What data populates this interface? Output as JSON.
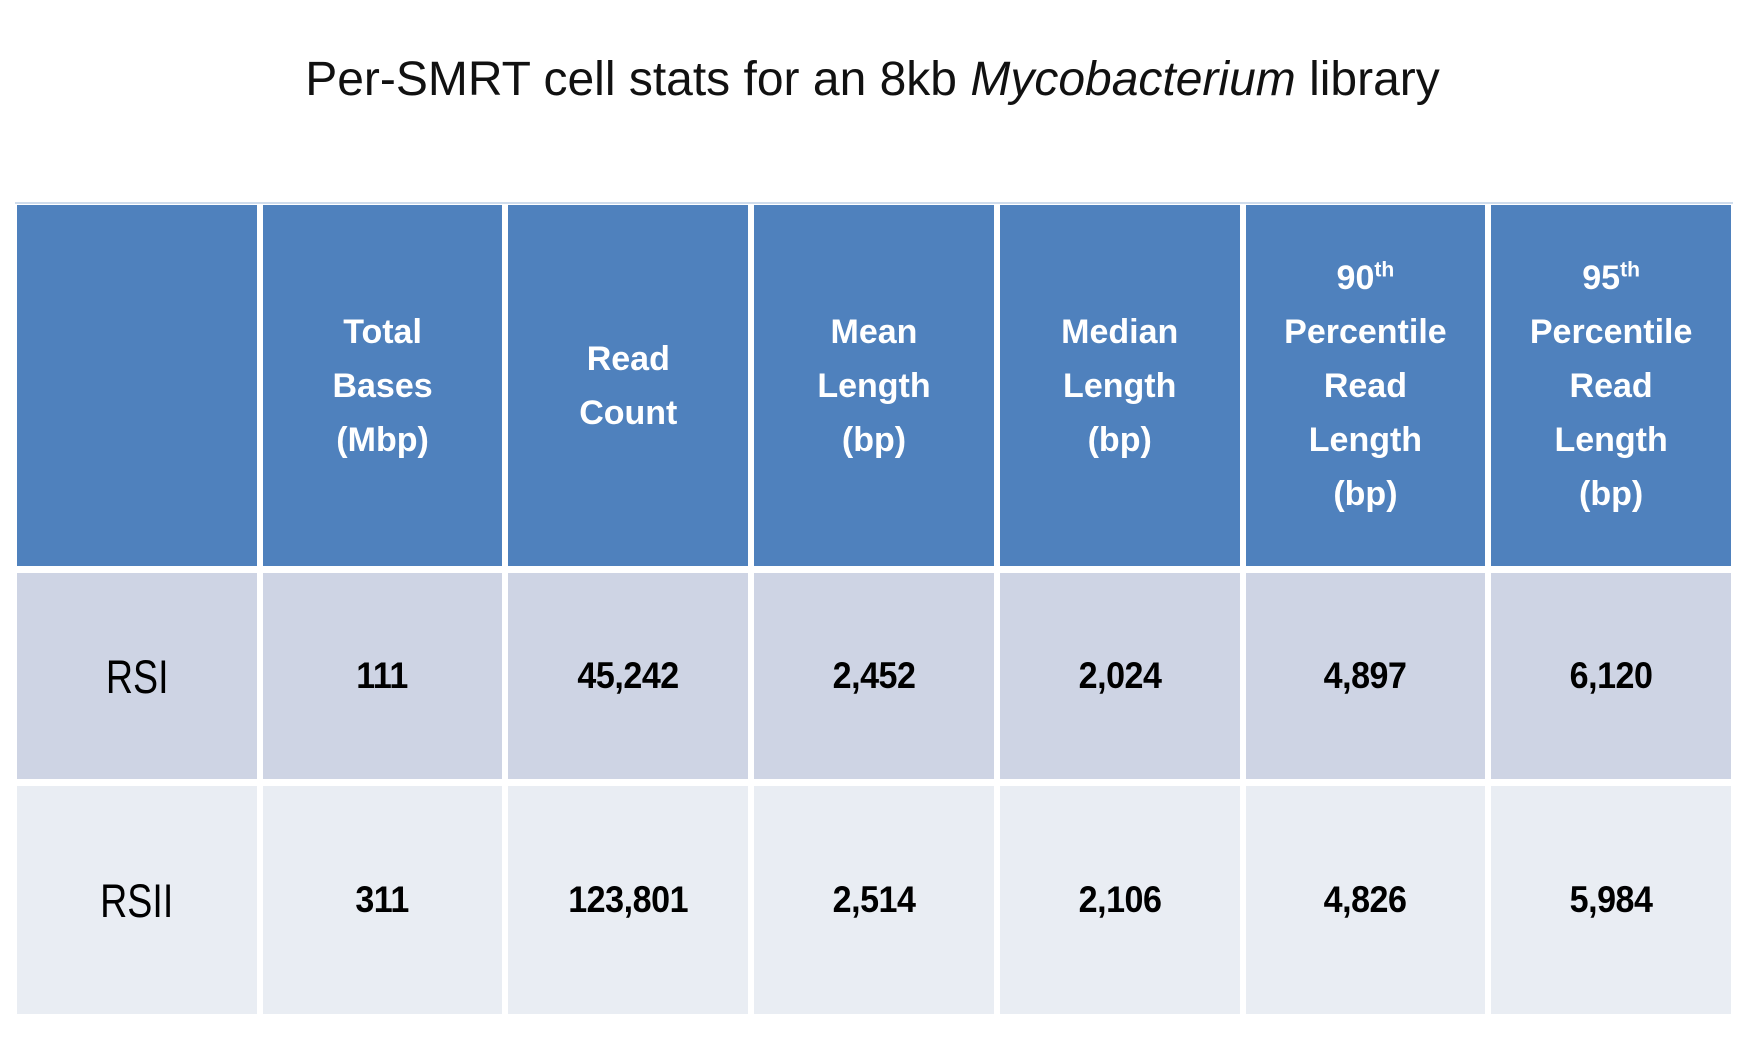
{
  "title": {
    "prefix": "Per-SMRT cell stats for an 8kb ",
    "italic": "Mycobacterium",
    "suffix": " library"
  },
  "table": {
    "headers": [
      {
        "num": "",
        "sup": "",
        "label": "Total\nBases\n(Mbp)"
      },
      {
        "num": "",
        "sup": "",
        "label": "Read\nCount"
      },
      {
        "num": "",
        "sup": "",
        "label": "Mean\nLength\n(bp)"
      },
      {
        "num": "",
        "sup": "",
        "label": "Median\nLength\n(bp)"
      },
      {
        "num": "90",
        "sup": "th",
        "label": "Percentile\nRead\nLength\n(bp)"
      },
      {
        "num": "95",
        "sup": "th",
        "label": "Percentile\nRead\nLength\n(bp)"
      }
    ],
    "rows": [
      {
        "name": "RSI",
        "values": [
          "111",
          "45,242",
          "2,452",
          "2,024",
          "4,897",
          "6,120"
        ]
      },
      {
        "name": "RSII",
        "values": [
          "311",
          "123,801",
          "2,514",
          "2,106",
          "4,826",
          "5,984"
        ]
      }
    ]
  },
  "colors": {
    "header_bg": "#4f81bd",
    "header_text": "#ffffff",
    "row_odd_bg": "#ced4e4",
    "row_even_bg": "#e9edf3",
    "body_text": "#000000",
    "top_line": "#cfdcec",
    "gap": "#ffffff"
  },
  "chart_data": {
    "type": "table",
    "title": "Per-SMRT cell stats for an 8kb Mycobacterium library",
    "row_labels": [
      "RSI",
      "RSII"
    ],
    "columns": [
      "Total Bases (Mbp)",
      "Read Count",
      "Mean Length (bp)",
      "Median Length (bp)",
      "90th Percentile Read Length (bp)",
      "95th Percentile Read Length (bp)"
    ],
    "rows": [
      [
        111,
        45242,
        2452,
        2024,
        4897,
        6120
      ],
      [
        311,
        123801,
        2514,
        2106,
        4826,
        5984
      ]
    ]
  }
}
